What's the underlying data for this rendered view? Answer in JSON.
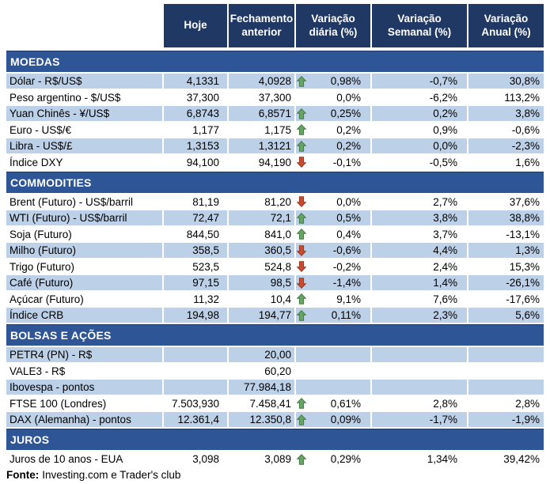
{
  "colors": {
    "header_bg": "#203864",
    "section_bg": "#2E5596",
    "row_shaded": "#BCD0E8",
    "up_fill": "#67A567",
    "up_stroke": "#447A44",
    "down_fill": "#CC4B2E",
    "down_stroke": "#933822"
  },
  "chart_data": {
    "type": "table",
    "columns": [
      "Hoje",
      "Fechamento anterior",
      "Variação diária (%)",
      "Variação Semanal (%)",
      "Variação Anual (%)"
    ],
    "sections": [
      {
        "title": "MOEDAS",
        "rows": [
          {
            "label": "Dólar - R$/US$",
            "hoje": "4,1331",
            "fechamento": "4,0928",
            "arrow": "up",
            "diaria": "0,98%",
            "semanal": "-0,7%",
            "anual": "30,8%"
          },
          {
            "label": "Peso argentino - $/US$",
            "hoje": "37,300",
            "fechamento": "37,300",
            "arrow": null,
            "diaria": "0,0%",
            "semanal": "-6,2%",
            "anual": "113,2%"
          },
          {
            "label": "Yuan Chinês - ¥/US$",
            "hoje": "6,8743",
            "fechamento": "6,8571",
            "arrow": "up",
            "diaria": "0,25%",
            "semanal": "0,2%",
            "anual": "3,8%"
          },
          {
            "label": "Euro - US$/€",
            "hoje": "1,177",
            "fechamento": "1,175",
            "arrow": "up",
            "diaria": "0,2%",
            "semanal": "0,9%",
            "anual": "-0,6%"
          },
          {
            "label": "Libra - US$/£",
            "hoje": "1,3153",
            "fechamento": "1,3121",
            "arrow": "up",
            "diaria": "0,2%",
            "semanal": "0,0%",
            "anual": "-2,3%"
          },
          {
            "label": "Índice DXY",
            "hoje": "94,100",
            "fechamento": "94,190",
            "arrow": "down",
            "diaria": "-0,1%",
            "semanal": "-0,5%",
            "anual": "1,6%"
          }
        ]
      },
      {
        "title": "COMMODITIES",
        "rows": [
          {
            "label": "Brent (Futuro) - US$/barril",
            "hoje": "81,19",
            "fechamento": "81,20",
            "arrow": "down",
            "diaria": "0,0%",
            "semanal": "2,7%",
            "anual": "37,6%"
          },
          {
            "label": "WTI (Futuro) - US$/barril",
            "hoje": "72,47",
            "fechamento": "72,1",
            "arrow": "up",
            "diaria": "0,5%",
            "semanal": "3,8%",
            "anual": "38,8%"
          },
          {
            "label": "Soja (Futuro)",
            "hoje": "844,50",
            "fechamento": "841,0",
            "arrow": "up",
            "diaria": "0,4%",
            "semanal": "3,7%",
            "anual": "-13,1%"
          },
          {
            "label": "Milho (Futuro)",
            "hoje": "358,5",
            "fechamento": "360,5",
            "arrow": "down",
            "diaria": "-0,6%",
            "semanal": "4,4%",
            "anual": "1,3%"
          },
          {
            "label": "Trigo (Futuro)",
            "hoje": "523,5",
            "fechamento": "524,8",
            "arrow": "down",
            "diaria": "-0,2%",
            "semanal": "2,4%",
            "anual": "15,3%"
          },
          {
            "label": "Café (Futuro)",
            "hoje": "97,15",
            "fechamento": "98,5",
            "arrow": "down",
            "diaria": "-1,4%",
            "semanal": "1,4%",
            "anual": "-26,1%"
          },
          {
            "label": "Açúcar (Futuro)",
            "hoje": "11,32",
            "fechamento": "10,4",
            "arrow": "up",
            "diaria": "9,1%",
            "semanal": "7,6%",
            "anual": "-17,6%"
          },
          {
            "label": "Índice CRB",
            "hoje": "194,98",
            "fechamento": "194,77",
            "arrow": "up",
            "diaria": "0,11%",
            "semanal": "2,3%",
            "anual": "5,6%"
          }
        ]
      },
      {
        "title": "BOLSAS E AÇÕES",
        "rows": [
          {
            "label": "PETR4 (PN) - R$",
            "hoje": "",
            "fechamento": "20,00",
            "arrow": null,
            "diaria": "",
            "semanal": "",
            "anual": ""
          },
          {
            "label": "VALE3 - R$",
            "hoje": "",
            "fechamento": "60,20",
            "arrow": null,
            "diaria": "",
            "semanal": "",
            "anual": ""
          },
          {
            "label": "Ibovespa - pontos",
            "hoje": "",
            "fechamento": "77.984,18",
            "arrow": null,
            "diaria": "",
            "semanal": "",
            "anual": ""
          },
          {
            "label": "FTSE 100 (Londres)",
            "hoje": "7.503,930",
            "fechamento": "7.458,41",
            "arrow": "up",
            "diaria": "0,61%",
            "semanal": "2,8%",
            "anual": "2,8%"
          },
          {
            "label": "DAX (Alemanha) - pontos",
            "hoje": "12.361,4",
            "fechamento": "12.350,8",
            "arrow": "up",
            "diaria": "0,09%",
            "semanal": "-1,7%",
            "anual": "-1,9%"
          }
        ]
      },
      {
        "title": "JUROS",
        "rows": [
          {
            "label": "Juros de 10 anos - EUA",
            "hoje": "3,098",
            "fechamento": "3,089",
            "arrow": "up",
            "diaria": "0,29%",
            "semanal": "1,34%",
            "anual": "39,42%"
          }
        ]
      }
    ],
    "footer": {
      "label": "Fonte:",
      "text": "Investing.com e Trader's club"
    }
  }
}
